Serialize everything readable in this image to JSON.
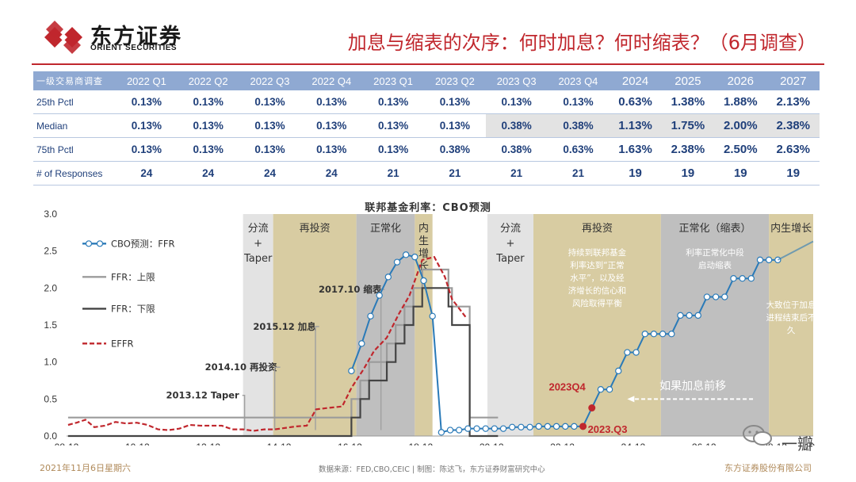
{
  "header": {
    "logo_cn": "东方证券",
    "logo_en": "ORIENT SECURITIES",
    "title": "加息与缩表的次序：何时加息？何时缩表？（6月调查）"
  },
  "table": {
    "corner": "一级交易商调查",
    "columns": [
      "2022 Q1",
      "2022 Q2",
      "2022 Q3",
      "2022 Q4",
      "2023 Q1",
      "2023 Q2",
      "2023 Q3",
      "2023 Q4",
      "2024",
      "2025",
      "2026",
      "2027"
    ],
    "rows": [
      {
        "label": "25th Pctl",
        "values": [
          "0.13%",
          "0.13%",
          "0.13%",
          "0.13%",
          "0.13%",
          "0.13%",
          "0.13%",
          "0.13%",
          "0.63%",
          "1.38%",
          "1.88%",
          "2.13%"
        ]
      },
      {
        "label": "Median",
        "values": [
          "0.13%",
          "0.13%",
          "0.13%",
          "0.13%",
          "0.13%",
          "0.13%",
          "0.38%",
          "0.38%",
          "1.13%",
          "1.75%",
          "2.00%",
          "2.38%"
        ]
      },
      {
        "label": "75th Pctl",
        "values": [
          "0.13%",
          "0.13%",
          "0.13%",
          "0.13%",
          "0.13%",
          "0.38%",
          "0.38%",
          "0.63%",
          "1.63%",
          "2.38%",
          "2.50%",
          "2.63%"
        ]
      },
      {
        "label": "# of Responses",
        "values": [
          "24",
          "24",
          "24",
          "24",
          "21",
          "21",
          "21",
          "21",
          "19",
          "19",
          "19",
          "19"
        ]
      }
    ]
  },
  "chart_data": {
    "type": "line",
    "title": "联邦基金利率：CBO预测",
    "ylim": [
      0,
      3.0
    ],
    "yticks": [
      "0.0",
      "0.5",
      "1.0",
      "1.5",
      "2.0",
      "2.5",
      "3.0"
    ],
    "xlim": [
      2008.917,
      2030.0
    ],
    "xticks": [
      "08-12",
      "10-12",
      "12-12",
      "14-12",
      "16-12",
      "18-12",
      "20-12",
      "22-12",
      "24-12",
      "26-12",
      "28-12",
      "12"
    ],
    "legend": [
      "CBO预测：FFR",
      "FFR：上限",
      "FFR：下限",
      "EFFR"
    ],
    "phases": [
      {
        "label": "分流\n+\nTaper",
        "x0": 2013.9,
        "x1": 2014.75,
        "kind": "taper"
      },
      {
        "label": "再投资",
        "x0": 2014.75,
        "x1": 2017.1,
        "kind": "reinvest"
      },
      {
        "label": "正常化",
        "x0": 2017.1,
        "x1": 2018.75,
        "kind": "normal"
      },
      {
        "label": "内\n生\n增\n长",
        "x0": 2018.75,
        "x1": 2019.25,
        "kind": "reinvest"
      },
      {
        "label": "分流\n+\nTaper",
        "x0": 2020.8,
        "x1": 2022.1,
        "kind": "taper"
      },
      {
        "label": "再投资",
        "x0": 2022.1,
        "x1": 2025.7,
        "kind": "reinvest"
      },
      {
        "label": "正常化（缩表）",
        "x0": 2025.7,
        "x1": 2028.75,
        "kind": "normal"
      },
      {
        "label": "内生增长",
        "x0": 2028.75,
        "x1": 2030.0,
        "kind": "reinvest"
      }
    ],
    "phase_notes": [
      "持续到联邦基金利率达到“正常水平”，以及经济增长的信心和风险取得平衡",
      "利率正常化中段启动缩表",
      "大致位于加息进程结束后不久"
    ],
    "annotations": [
      {
        "text": "2017.10 缩表",
        "x": 2017.75
      },
      {
        "text": "2015.12 加息",
        "x": 2015.9
      },
      {
        "text": "2014.10 再投资",
        "x": 2014.75
      },
      {
        "text": "2013.12 Taper",
        "x": 2013.9
      }
    ],
    "markers": [
      {
        "text": "2023Q4",
        "x": 2023.75,
        "y": 0.38
      },
      {
        "text": "2023.Q3",
        "x": 2023.5,
        "y": 0.13
      }
    ],
    "arrow_note": "如果加息前移",
    "series": [
      {
        "name": "FFR：上限",
        "color": "#9b9b9b",
        "x": [
          2008.96,
          2015.96,
          2016.96,
          2017.21,
          2017.46,
          2017.96,
          2018.21,
          2018.46,
          2018.71,
          2018.96,
          2019.55,
          2019.7,
          2019.8,
          2020.2,
          2020.3,
          2021.1
        ],
        "y": [
          0.25,
          0.25,
          0.5,
          0.75,
          1.0,
          1.25,
          1.5,
          1.75,
          2.0,
          2.25,
          2.25,
          2.0,
          1.75,
          1.75,
          0.25,
          0.25
        ]
      },
      {
        "name": "FFR：下限",
        "color": "#444444",
        "x": [
          2008.96,
          2015.96,
          2016.96,
          2017.21,
          2017.46,
          2017.96,
          2018.21,
          2018.46,
          2018.71,
          2018.96,
          2019.55,
          2019.7,
          2019.8,
          2020.2,
          2020.3,
          2021.1
        ],
        "y": [
          0.0,
          0.0,
          0.25,
          0.5,
          0.75,
          1.0,
          1.25,
          1.5,
          1.75,
          2.0,
          2.0,
          1.75,
          1.5,
          1.5,
          0.0,
          0.0
        ]
      },
      {
        "name": "EFFR",
        "color": "#c0272d",
        "x": [
          2008.96,
          2009.2,
          2009.45,
          2009.7,
          2010.0,
          2010.3,
          2010.6,
          2010.9,
          2011.2,
          2011.5,
          2011.8,
          2012.1,
          2012.4,
          2012.7,
          2013.0,
          2013.3,
          2013.6,
          2013.9,
          2014.2,
          2014.5,
          2014.8,
          2015.1,
          2015.4,
          2015.7,
          2015.96,
          2016.3,
          2016.7,
          2016.96,
          2017.3,
          2017.6,
          2017.96,
          2018.3,
          2018.6,
          2018.96,
          2019.3,
          2019.6,
          2019.8,
          2020.2
        ],
        "y": [
          0.15,
          0.18,
          0.22,
          0.12,
          0.14,
          0.19,
          0.17,
          0.18,
          0.15,
          0.09,
          0.08,
          0.1,
          0.15,
          0.14,
          0.14,
          0.14,
          0.09,
          0.09,
          0.07,
          0.09,
          0.09,
          0.11,
          0.13,
          0.14,
          0.36,
          0.38,
          0.4,
          0.65,
          0.9,
          1.15,
          1.33,
          1.65,
          1.9,
          2.38,
          2.42,
          2.15,
          1.85,
          1.6
        ]
      },
      {
        "name": "CBO预测：FFR",
        "color": "#2a7ab8",
        "x": [
          2016.96,
          2017.25,
          2017.5,
          2017.75,
          2018.0,
          2018.25,
          2018.5,
          2018.75,
          2019.0,
          2019.25,
          2019.5,
          2019.75,
          2020.0,
          2020.25,
          2020.5,
          2020.75,
          2021.0,
          2021.25,
          2021.5,
          2021.75,
          2022.0,
          2022.25,
          2022.5,
          2022.75,
          2023.0,
          2023.25,
          2023.5,
          2023.75,
          2024.0,
          2024.25,
          2024.5,
          2024.75,
          2025.0,
          2025.25,
          2025.5,
          2025.75,
          2026.0,
          2026.25,
          2026.5,
          2026.75,
          2027.0,
          2027.25,
          2027.5,
          2027.75,
          2028.0,
          2028.25,
          2028.5,
          2028.75,
          2029.0
        ],
        "y": [
          0.88,
          1.25,
          1.62,
          1.9,
          2.15,
          2.35,
          2.45,
          2.42,
          2.1,
          1.62,
          0.05,
          0.08,
          0.08,
          0.1,
          0.1,
          0.1,
          0.1,
          0.1,
          0.12,
          0.12,
          0.12,
          0.13,
          0.13,
          0.13,
          0.13,
          0.13,
          0.13,
          0.38,
          0.63,
          0.63,
          0.88,
          1.13,
          1.13,
          1.38,
          1.38,
          1.38,
          1.38,
          1.63,
          1.63,
          1.63,
          1.88,
          1.88,
          1.88,
          2.13,
          2.13,
          2.13,
          2.38,
          2.38,
          2.38
        ]
      }
    ],
    "trend_note": "CBO path continues to 2.6 near right edge"
  },
  "footer": {
    "date": "2021年11月6日星期六",
    "source": "数据来源：FED,CBO,CEIC  |  制图：陈达飞，东方证券财富研究中心",
    "company": "东方证券股份有限公司",
    "watermark": "一瓣"
  },
  "colors": {
    "brand_red": "#c0272d",
    "table_header": "#8fa9d2",
    "reinvest": "#d8cca2",
    "normal": "#bfbfbf",
    "taper": "#e3e3e3"
  }
}
